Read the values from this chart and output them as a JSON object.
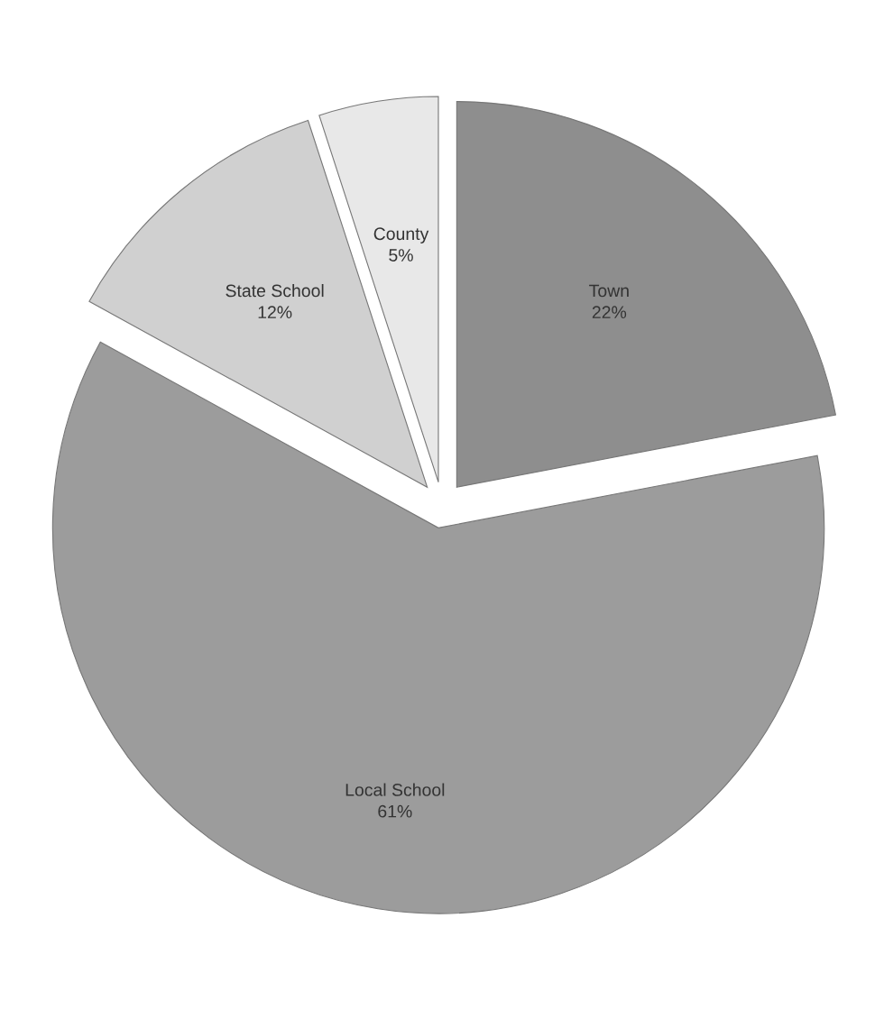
{
  "chart_data": {
    "type": "pie",
    "categories": [
      "Town",
      "Local School",
      "State School",
      "County"
    ],
    "values": [
      22,
      61,
      12,
      5
    ],
    "value_labels": [
      "22%",
      "61%",
      "12%",
      "5%"
    ],
    "colors": [
      "#8e8e8e",
      "#9c9c9c",
      "#d0d0d0",
      "#e8e8e8"
    ],
    "legend": false
  }
}
